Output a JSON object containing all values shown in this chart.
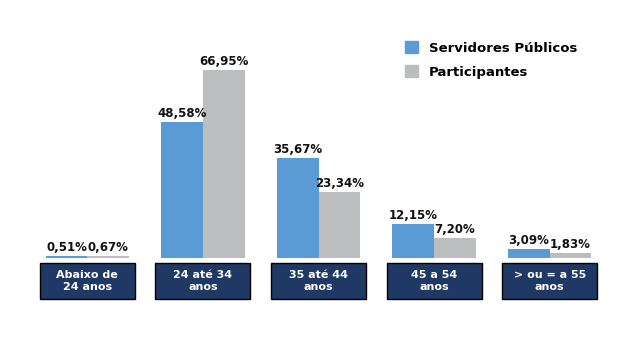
{
  "categories": [
    "Abaixo de\n24 anos",
    "24 até 34\nanos",
    "35 até 44\nanos",
    "45 a 54\nanos",
    "> ou = a 55\nanos"
  ],
  "servidores": [
    0.51,
    48.58,
    35.67,
    12.15,
    3.09
  ],
  "participantes": [
    0.67,
    66.95,
    23.34,
    7.2,
    1.83
  ],
  "servidores_labels": [
    "0,51%",
    "48,58%",
    "35,67%",
    "12,15%",
    "3,09%"
  ],
  "participantes_labels": [
    "0,67%",
    "66,95%",
    "23,34%",
    "7,20%",
    "1,83%"
  ],
  "color_servidores": "#5B9BD5",
  "color_participantes": "#BBBDBF",
  "color_label_bg": "#1F3864",
  "legend_servidores": "Servidores Públicos",
  "legend_participantes": "Participantes",
  "bar_width": 0.36,
  "ylim": [
    0,
    80
  ],
  "label_fontsize": 8.5,
  "legend_fontsize": 9.5,
  "category_fontsize": 8.0,
  "background_color": "#FFFFFF"
}
